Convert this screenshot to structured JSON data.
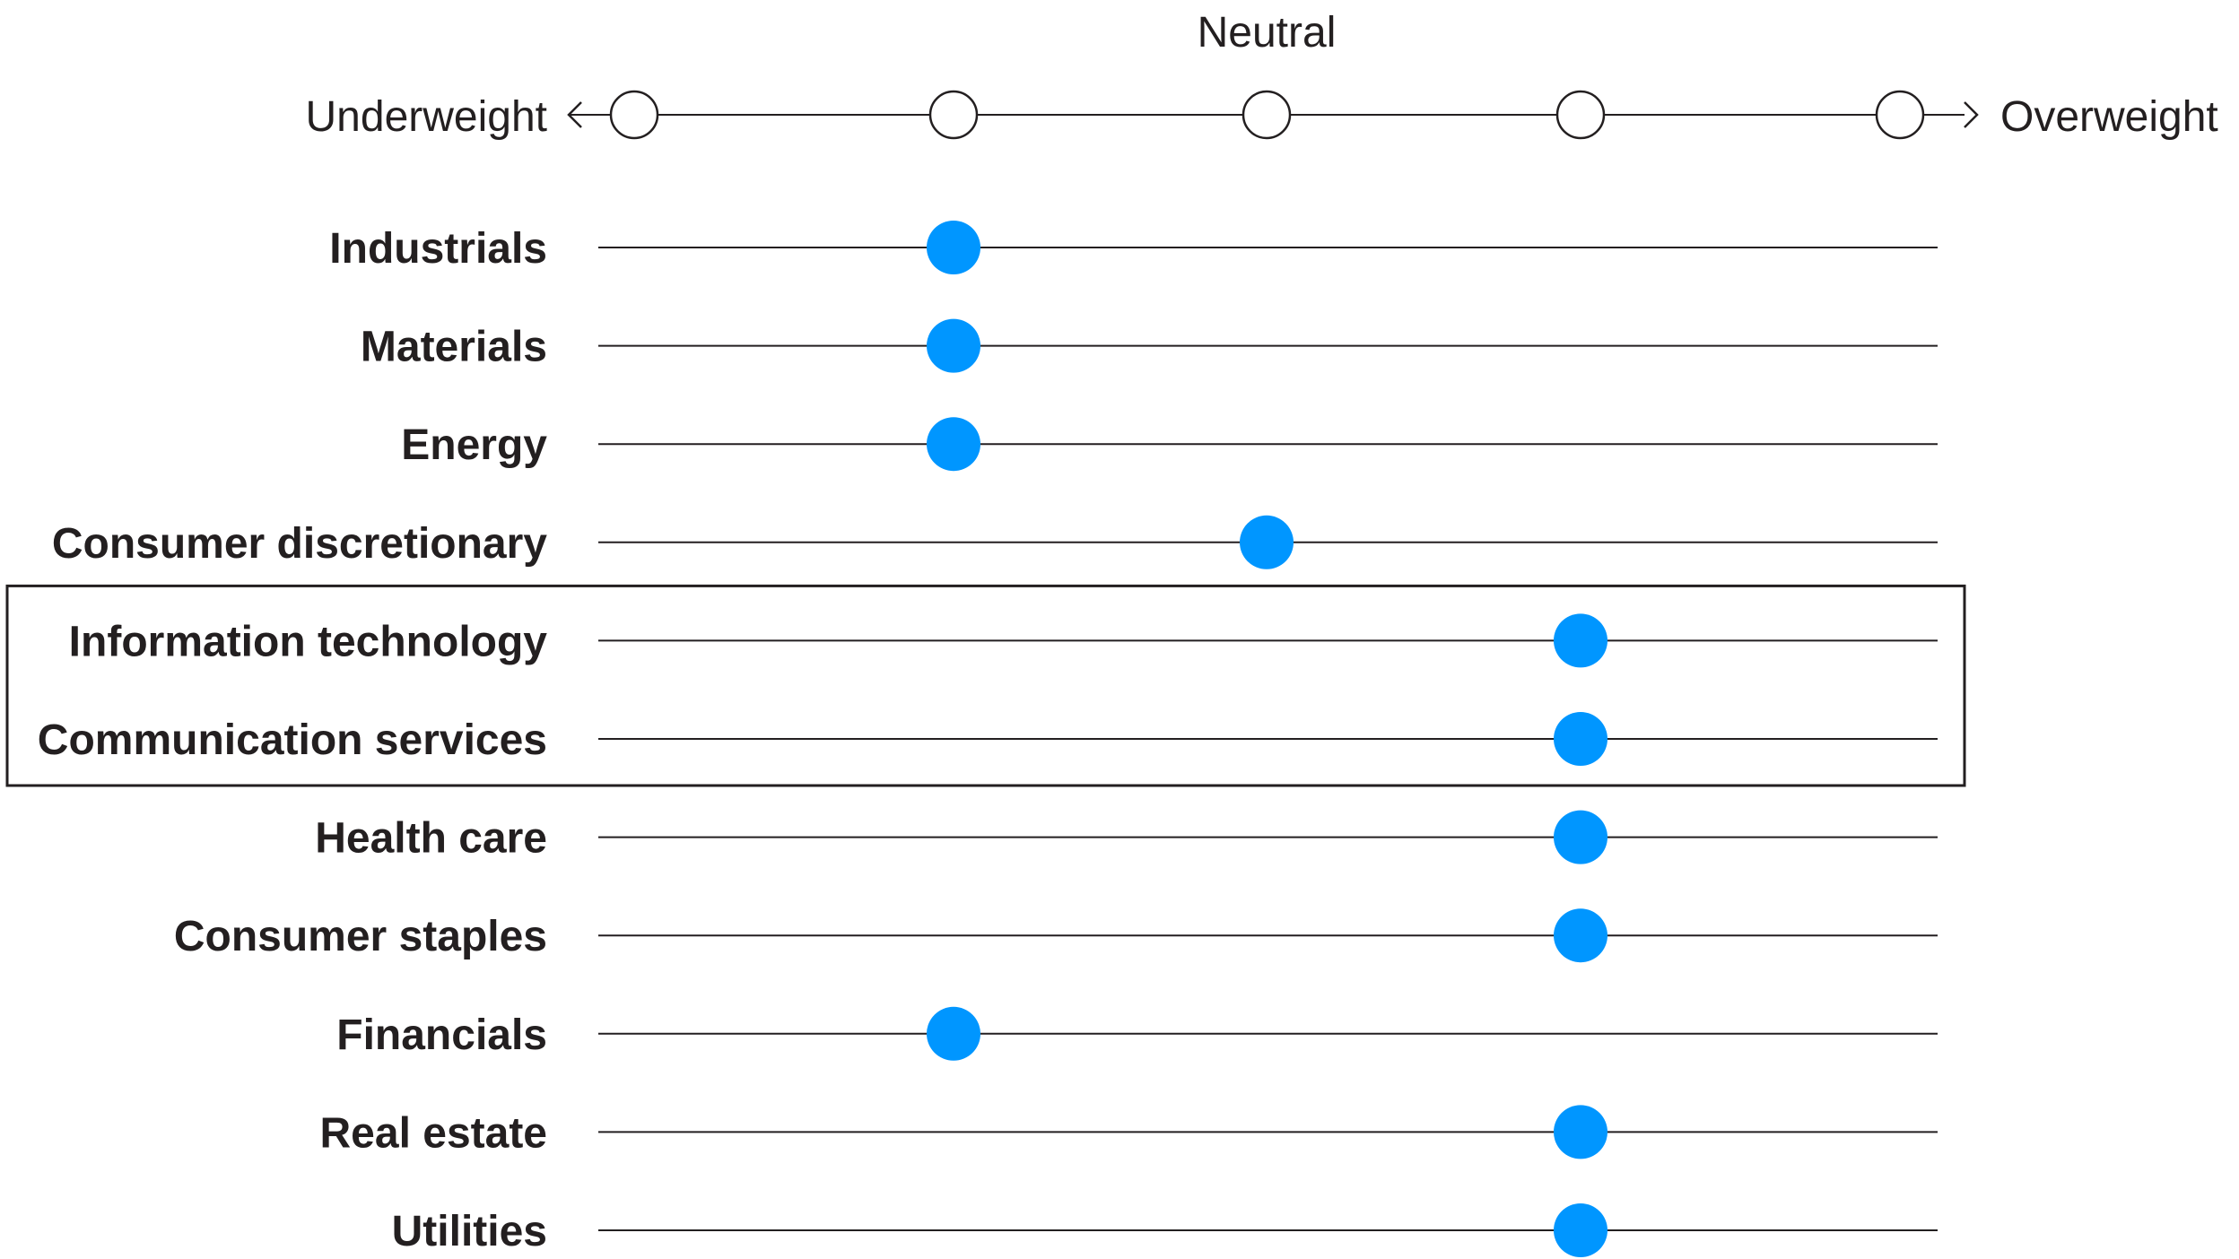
{
  "chart_data": {
    "type": "scatter",
    "scale": {
      "levels": [
        1,
        2,
        3,
        4,
        5
      ],
      "neutral_label": "Neutral",
      "left_label": "Underweight",
      "right_label": "Overweight"
    },
    "categories": [
      "Industrials",
      "Materials",
      "Energy",
      "Consumer discretionary",
      "Information technology",
      "Communication services",
      "Health care",
      "Consumer staples",
      "Financials",
      "Real estate",
      "Utilities"
    ],
    "values": [
      2,
      2,
      2,
      3,
      4,
      4,
      4,
      4,
      2,
      4,
      4
    ],
    "highlighted_categories": [
      "Information technology",
      "Communication services"
    ],
    "colors": {
      "marker": "#0096FF",
      "line": "#231f20",
      "text": "#231f20"
    }
  }
}
